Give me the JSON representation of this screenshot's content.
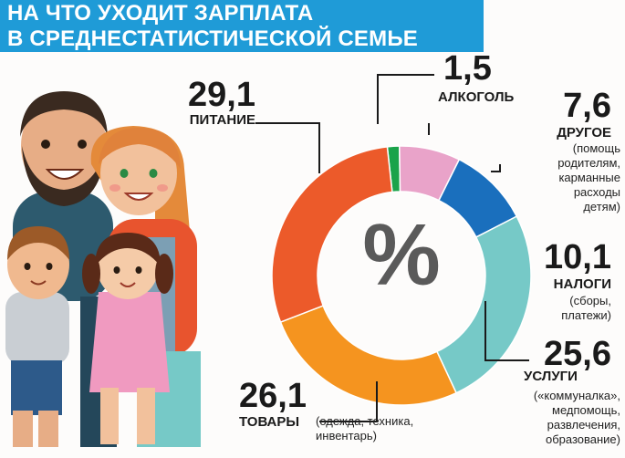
{
  "header": {
    "title_line1": "НА ЧТО УХОДИТ ЗАРПЛАТА",
    "title_line2": "В СРЕДНЕСТАТИСТИЧЕСКОЙ СЕМЬЕ"
  },
  "center_symbol": "%",
  "chart_data": {
    "type": "pie",
    "style": "donut",
    "title": "НА ЧТО УХОДИТ ЗАРПЛАТА В СРЕДНЕСТАТИСТИЧЕСКОЙ СЕМЬЕ",
    "unit": "%",
    "slices": [
      {
        "value_label": "1,5",
        "value": 1.5,
        "label": "АЛКОГОЛЬ",
        "note": "",
        "color": "#1aa34a"
      },
      {
        "value_label": "7,6",
        "value": 7.6,
        "label": "ДРУГОЕ",
        "note": "(помощь родителям, карманные расходы детям)",
        "note_lines": [
          "(помощь",
          "родителям,",
          "карманные",
          "расходы",
          "детям)"
        ],
        "color": "#e9a3c9"
      },
      {
        "value_label": "10,1",
        "value": 10.1,
        "label": "НАЛОГИ",
        "note": "(сборы, платежи)",
        "note_lines": [
          "(сборы,",
          "платежи)"
        ],
        "color": "#1a6fbd"
      },
      {
        "value_label": "25,6",
        "value": 25.6,
        "label": "УСЛУГИ",
        "note": "(«коммуналка», медпомощь, развлечения, образование)",
        "note_lines": [
          "(«коммуналка»,",
          "медпомощь,",
          "развлечения,",
          "образование)"
        ],
        "color": "#76c9c7"
      },
      {
        "value_label": "26,1",
        "value": 26.1,
        "label": "ТОВАРЫ",
        "note": "(одежда, техника, инвентарь)",
        "note_lines": [
          "(одежда, техника,",
          "инвентарь)"
        ],
        "color": "#f5941f"
      },
      {
        "value_label": "29,1",
        "value": 29.1,
        "label": "ПИТАНИЕ",
        "note": "",
        "color": "#ec5a2a"
      }
    ],
    "legend": "none"
  },
  "colors": {
    "title_band": "#1f9bd7",
    "leader_lines": "#1a1a1a"
  }
}
